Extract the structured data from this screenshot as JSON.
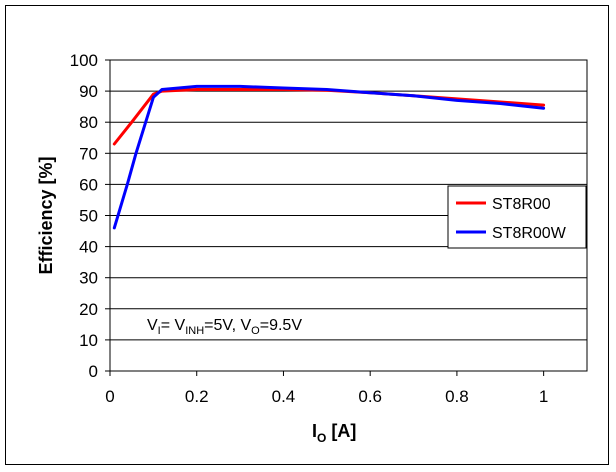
{
  "chart_data": {
    "type": "line",
    "title": "",
    "xlabel_main": "I",
    "xlabel_sub": "O",
    "xlabel_suffix": " [A]",
    "ylabel": "Efficiency [%]",
    "xlim": [
      0,
      1.1
    ],
    "ylim": [
      0,
      100
    ],
    "x_ticks": [
      0,
      0.2,
      0.4,
      0.6,
      0.8,
      1
    ],
    "x_tick_labels": [
      "0",
      "0.2",
      "0.4",
      "0.6",
      "0.8",
      "1"
    ],
    "y_ticks": [
      0,
      10,
      20,
      30,
      40,
      50,
      60,
      70,
      80,
      90,
      100
    ],
    "y_tick_labels": [
      "0",
      "10",
      "20",
      "30",
      "40",
      "50",
      "60",
      "70",
      "80",
      "90",
      "100"
    ],
    "grid": "horizontal",
    "legend_position": "right",
    "annotation": {
      "parts": [
        {
          "text": "V",
          "sub": false
        },
        {
          "text": "I",
          "sub": true
        },
        {
          "text": "= V",
          "sub": false
        },
        {
          "text": "INH",
          "sub": true
        },
        {
          "text": "=5V, V",
          "sub": false
        },
        {
          "text": "O",
          "sub": true
        },
        {
          "text": "=9.5V",
          "sub": false
        }
      ]
    },
    "series": [
      {
        "name": "ST8R00",
        "color": "#ff0000",
        "points": [
          [
            0.01,
            73
          ],
          [
            0.05,
            80
          ],
          [
            0.1,
            89
          ],
          [
            0.12,
            90
          ],
          [
            0.2,
            90.5
          ],
          [
            0.3,
            90.5
          ],
          [
            0.4,
            90.5
          ],
          [
            0.5,
            90.3
          ],
          [
            0.6,
            89.5
          ],
          [
            0.7,
            88.5
          ],
          [
            0.8,
            87.5
          ],
          [
            0.9,
            86.5
          ],
          [
            1.0,
            85.5
          ]
        ]
      },
      {
        "name": "ST8R00W",
        "color": "#0000ff",
        "points": [
          [
            0.01,
            46
          ],
          [
            0.04,
            60
          ],
          [
            0.06,
            70
          ],
          [
            0.08,
            79
          ],
          [
            0.1,
            88
          ],
          [
            0.12,
            90.5
          ],
          [
            0.2,
            91.5
          ],
          [
            0.3,
            91.5
          ],
          [
            0.4,
            91
          ],
          [
            0.5,
            90.5
          ],
          [
            0.6,
            89.5
          ],
          [
            0.7,
            88.5
          ],
          [
            0.8,
            87
          ],
          [
            0.9,
            86
          ],
          [
            1.0,
            84.5
          ]
        ]
      }
    ]
  }
}
